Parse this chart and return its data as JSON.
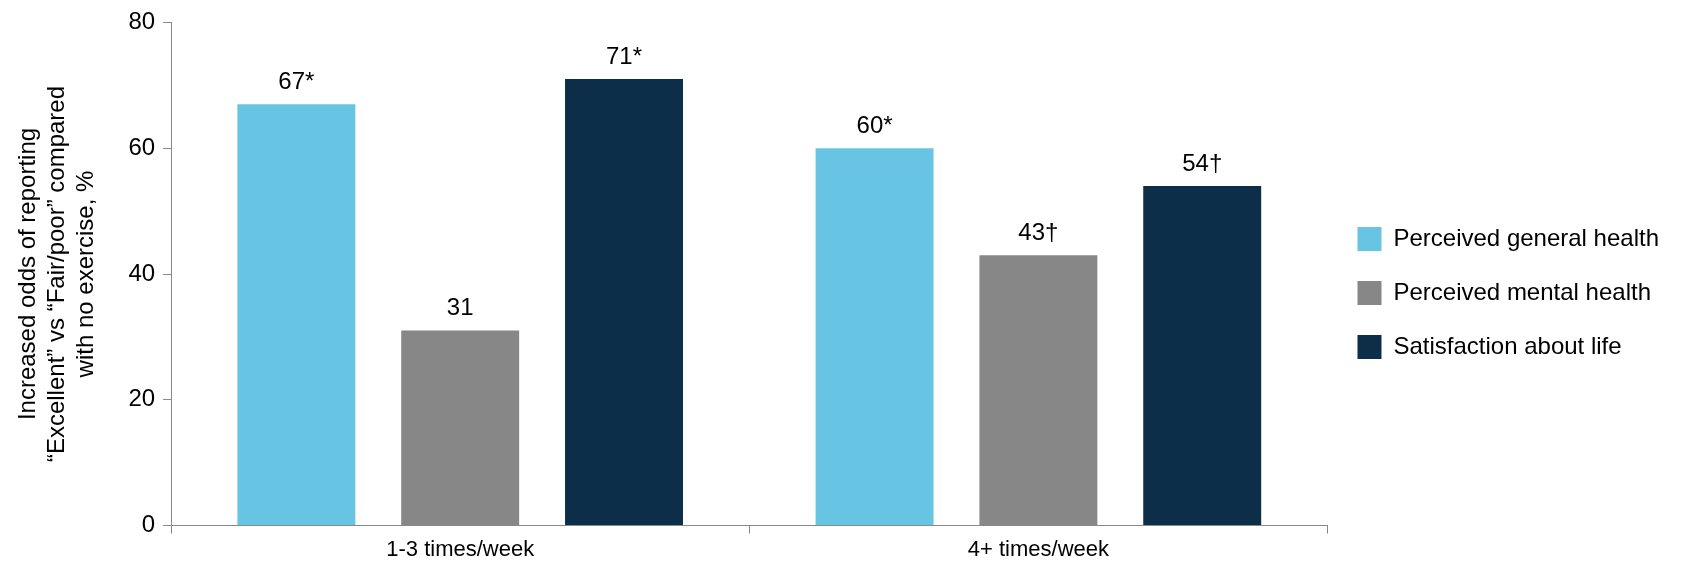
{
  "chart_data": {
    "type": "bar",
    "ylabel": "Increased odds of reporting\n“Excellent” vs “Fair/poor” compared\nwith no exercise, %",
    "categories": [
      "1-3 times/week",
      "4+ times/week"
    ],
    "series": [
      {
        "name": "Perceived general health",
        "color": "#67c5e3",
        "values": [
          67,
          60
        ],
        "value_labels": [
          "67*",
          "60*"
        ]
      },
      {
        "name": "Perceived mental health",
        "color": "#878787",
        "values": [
          31,
          43
        ],
        "value_labels": [
          "31",
          "43†"
        ]
      },
      {
        "name": "Satisfaction about life",
        "color": "#0d2e49",
        "values": [
          71,
          54
        ],
        "value_labels": [
          "71*",
          "54†"
        ]
      }
    ],
    "ylim": [
      0,
      80
    ],
    "yticks": [
      0,
      20,
      40,
      60,
      80
    ],
    "grid": false,
    "legend": "right"
  }
}
